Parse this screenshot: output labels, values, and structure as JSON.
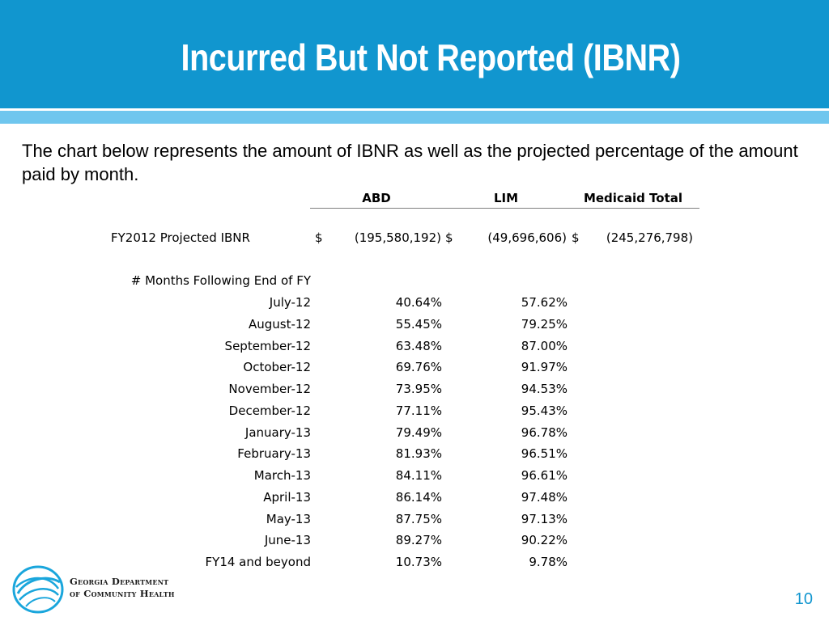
{
  "slide": {
    "title": "Incurred But Not Reported (IBNR)",
    "intro": "The chart below represents the amount of IBNR as well as the projected percentage of the amount paid by month.",
    "page_number": "10"
  },
  "table": {
    "headers": {
      "abd": "ABD",
      "lim": "LIM",
      "total": "Medicaid Total"
    },
    "projected": {
      "label": "FY2012 Projected IBNR",
      "abd_sym": "$",
      "abd": "(195,580,192)",
      "lim_sym": "$",
      "lim": "(49,696,606)",
      "total_sym": "$",
      "total": "(245,276,798)"
    },
    "months_label": "# Months Following End of FY",
    "rows": [
      {
        "month": "July-12",
        "abd": "40.64%",
        "lim": "57.62%"
      },
      {
        "month": "August-12",
        "abd": "55.45%",
        "lim": "79.25%"
      },
      {
        "month": "September-12",
        "abd": "63.48%",
        "lim": "87.00%"
      },
      {
        "month": "October-12",
        "abd": "69.76%",
        "lim": "91.97%"
      },
      {
        "month": "November-12",
        "abd": "73.95%",
        "lim": "94.53%"
      },
      {
        "month": "December-12",
        "abd": "77.11%",
        "lim": "95.43%"
      },
      {
        "month": "January-13",
        "abd": "79.49%",
        "lim": "96.78%"
      },
      {
        "month": "February-13",
        "abd": "81.93%",
        "lim": "96.51%"
      },
      {
        "month": "March-13",
        "abd": "84.11%",
        "lim": "96.61%"
      },
      {
        "month": "April-13",
        "abd": "86.14%",
        "lim": "97.48%"
      },
      {
        "month": "May-13",
        "abd": "87.75%",
        "lim": "97.13%"
      },
      {
        "month": "June-13",
        "abd": "89.27%",
        "lim": "90.22%"
      },
      {
        "month": "FY14 and beyond",
        "abd": "10.73%",
        "lim": "9.78%"
      }
    ]
  },
  "footer": {
    "org_line1": "Georgia Department",
    "org_line2": "of Community Health",
    "logo_icon": "dch-swirl-logo-icon",
    "accent_color": "#1196cf"
  }
}
